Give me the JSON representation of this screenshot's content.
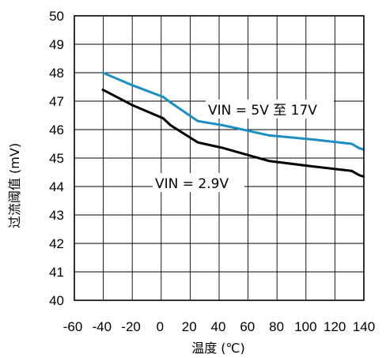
{
  "chart_data": {
    "type": "line",
    "xlabel": "温度 (℃)",
    "ylabel": "过流阈值 (mV)",
    "xlim": [
      -60,
      140
    ],
    "ylim": [
      40,
      50
    ],
    "x_ticks": [
      "-60",
      "-40",
      "-20",
      "0",
      "20",
      "40",
      "60",
      "80",
      "100",
      "120",
      "140"
    ],
    "y_ticks": [
      "40",
      "41",
      "42",
      "43",
      "44",
      "45",
      "46",
      "47",
      "48",
      "49",
      "50"
    ],
    "grid": true,
    "series": [
      {
        "name": "VIN = 5V 至 17V",
        "color": "#1a8fc0",
        "x": [
          -40,
          -20,
          0,
          5,
          23,
          40,
          70,
          100,
          125,
          130,
          133
        ],
        "y": [
          48.0,
          47.55,
          47.15,
          46.95,
          46.3,
          46.15,
          45.8,
          45.65,
          45.5,
          45.35,
          45.3
        ]
      },
      {
        "name": "VIN = 2.9V",
        "color": "#000000",
        "x": [
          -40,
          -20,
          0,
          5,
          23,
          40,
          70,
          100,
          125,
          130,
          133
        ],
        "y": [
          47.4,
          46.85,
          46.4,
          46.15,
          45.55,
          45.35,
          44.9,
          44.7,
          44.55,
          44.4,
          44.35
        ]
      }
    ],
    "annotations": [
      {
        "text": "VIN = 5V 至 17V",
        "series": 0
      },
      {
        "text": "VIN = 2.9V",
        "series": 1
      }
    ]
  }
}
